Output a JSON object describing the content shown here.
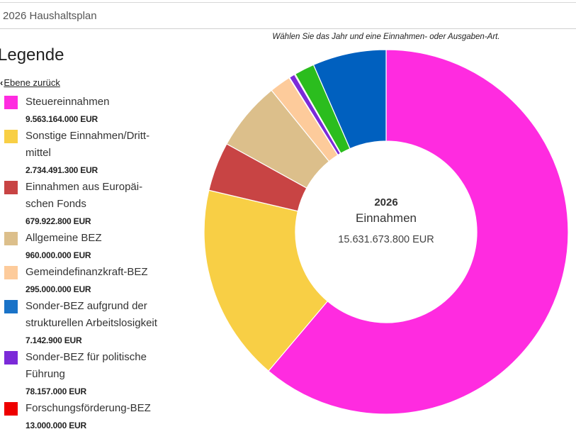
{
  "header": {
    "title": "2026 Haushaltsplan"
  },
  "legend": {
    "heading": "Legende",
    "back_label": "Ebene zurück"
  },
  "hint": "Wählen Sie das Jahr und eine Einnahmen- oder Ausgaben-Art.",
  "center": {
    "year": "2026",
    "type": "Einnahmen",
    "total": "15.631.673.800 EUR"
  },
  "chart_data": {
    "type": "pie",
    "variant": "donut",
    "title": "2026 Einnahmen",
    "total": 15631673800,
    "unit": "EUR",
    "slices": [
      {
        "name": "Steuereinnahmen",
        "label": "Steuereinnahmen",
        "value": 9563164000,
        "value_text": "9.563.164.000 EUR",
        "color": "#ff2be0",
        "legend_color": "#ff2be0"
      },
      {
        "name": "Sonstige Einnahmen/Drittmittel",
        "label": "Sonstige Einnahmen/Dritt-\nmittel",
        "value": 2734491300,
        "value_text": "2.734.491.300 EUR",
        "color": "#f8cf45",
        "legend_color": "#f8cf45"
      },
      {
        "name": "Einnahmen aus Europäischen Fonds",
        "label": "Einnahmen aus Europäi-\nschen Fonds",
        "value": 679922800,
        "value_text": "679.922.800 EUR",
        "color": "#c84444",
        "legend_color": "#c84444"
      },
      {
        "name": "Allgemeine BEZ",
        "label": "Allgemeine BEZ",
        "value": 960000000,
        "value_text": "960.000.000 EUR",
        "color": "#dcbf8b",
        "legend_color": "#dcbf8b"
      },
      {
        "name": "Gemeindefinanzkraft-BEZ",
        "label": "Gemeindefinanzkraft-BEZ",
        "value": 295000000,
        "value_text": "295.000.000 EUR",
        "color": "#fdcb9b",
        "legend_color": "#fdcb9b"
      },
      {
        "name": "Sonder-BEZ aufgrund der strukturellen Arbeitslosigkeit",
        "label": "Sonder-BEZ aufgrund der\nstrukturellen Arbeitslosigkeit",
        "value": 7142900,
        "value_text": "7.142.900 EUR",
        "color": "#1a73c8",
        "legend_color": "#1a73c8"
      },
      {
        "name": "Sonder-BEZ für politische Führung",
        "label": "Sonder-BEZ für politische\nFührung",
        "value": 78157000,
        "value_text": "78.157.000 EUR",
        "color": "#7b2ad8",
        "legend_color": "#7b2ad8"
      },
      {
        "name": "Forschungsförderung-BEZ",
        "label": "Forschungsförderung-BEZ",
        "value": 13000000,
        "value_text": "13.000.000 EUR",
        "color": "#ee0000",
        "legend_color": "#ee0000"
      },
      {
        "name": "",
        "value": 280000000,
        "color": "#2bbd1e"
      },
      {
        "name": "",
        "value": 1020795800,
        "color": "#0060bf"
      }
    ]
  }
}
